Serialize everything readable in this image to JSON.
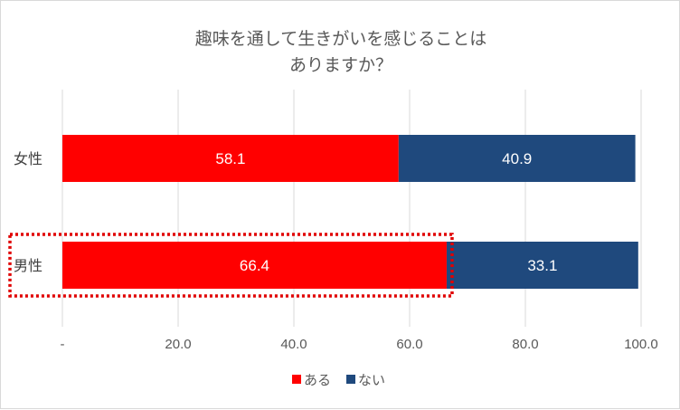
{
  "chart_data": {
    "type": "bar",
    "orientation": "horizontal",
    "stacked": true,
    "title_lines": [
      "趣味を通して生きがいを感じることは",
      "ありますか？"
    ],
    "categories": [
      "女性",
      "男性"
    ],
    "series": [
      {
        "name": "ある",
        "color": "#ff0000",
        "values": [
          58.1,
          66.4
        ]
      },
      {
        "name": "ない",
        "color": "#1f497d",
        "values": [
          40.9,
          33.1
        ]
      }
    ],
    "xlim": [
      0,
      100
    ],
    "x_ticks": [
      "-",
      "20.0",
      "40.0",
      "60.0",
      "80.0",
      "100.0"
    ],
    "grid": "vertical",
    "legend": "bottom",
    "highlight": {
      "category": "男性",
      "style": "dotted-red-box"
    }
  }
}
